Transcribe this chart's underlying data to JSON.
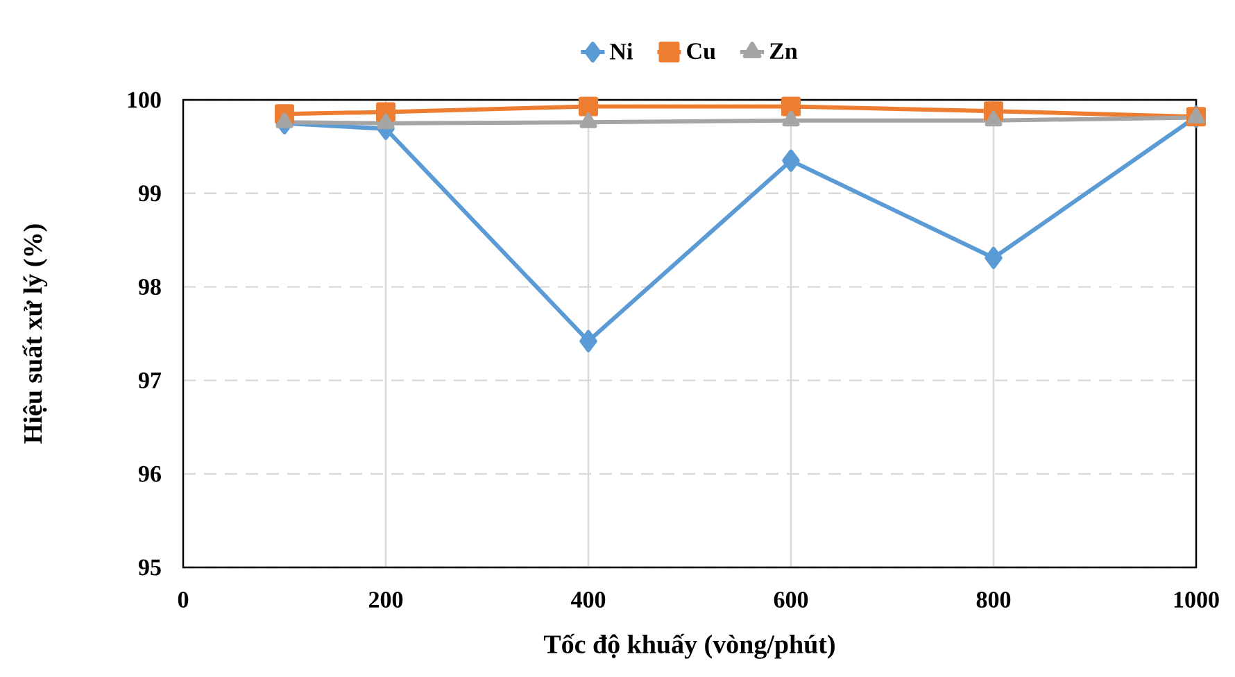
{
  "chart_data": {
    "type": "line",
    "xlabel": "Tốc độ khuấy (vòng/phút)",
    "ylabel": "Hiệu suất xử lý (%)",
    "x": [
      100,
      200,
      400,
      600,
      800,
      1000
    ],
    "series": [
      {
        "name": "Ni",
        "color": "#5b9bd5",
        "marker": "diamond",
        "values": [
          99.75,
          99.69,
          97.42,
          99.35,
          98.31,
          99.82
        ]
      },
      {
        "name": "Cu",
        "color": "#ed7d31",
        "marker": "square",
        "values": [
          99.85,
          99.87,
          99.93,
          99.93,
          99.88,
          99.82
        ]
      },
      {
        "name": "Zn",
        "color": "#a5a5a5",
        "marker": "triangle",
        "values": [
          99.76,
          99.75,
          99.76,
          99.78,
          99.78,
          99.81
        ]
      }
    ],
    "xlim": [
      0,
      1000
    ],
    "xticks": [
      0,
      200,
      400,
      600,
      800,
      1000
    ],
    "ylim": [
      95,
      100
    ],
    "yticks": [
      95,
      96,
      97,
      98,
      99,
      100
    ],
    "grid": true,
    "legend": "top",
    "line_style": "solid"
  }
}
